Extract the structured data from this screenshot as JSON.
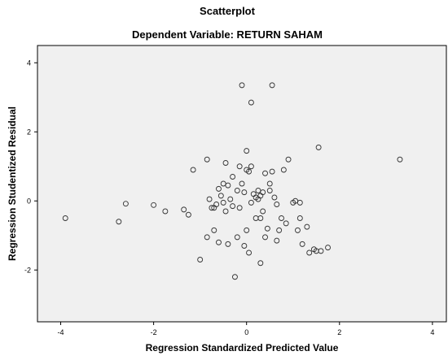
{
  "chart_data": {
    "type": "scatter",
    "title": "Scatterplot",
    "subtitle": "Dependent Variable: RETURN SAHAM",
    "xlabel": "Regression Standardized Predicted Value",
    "ylabel": "Regression Studentized Residual",
    "xlim": [
      -4.5,
      4.3
    ],
    "ylim": [
      -3.5,
      4.5
    ],
    "xticks": [
      -4,
      -2,
      0,
      2,
      4
    ],
    "yticks": [
      -2,
      0,
      2,
      4
    ],
    "grid": false,
    "colors": {
      "plot_bg": "#f0f0f0",
      "marker": "#333333",
      "frame": "#000000"
    },
    "points": [
      {
        "x": -3.9,
        "y": -0.5
      },
      {
        "x": -2.75,
        "y": -0.6
      },
      {
        "x": -2.6,
        "y": -0.08
      },
      {
        "x": -2.0,
        "y": -0.12
      },
      {
        "x": -1.75,
        "y": -0.3
      },
      {
        "x": -1.35,
        "y": -0.25
      },
      {
        "x": -1.25,
        "y": -0.4
      },
      {
        "x": -1.15,
        "y": 0.9
      },
      {
        "x": -1.0,
        "y": -1.7
      },
      {
        "x": -0.85,
        "y": 1.2
      },
      {
        "x": -0.85,
        "y": -1.05
      },
      {
        "x": -0.8,
        "y": 0.05
      },
      {
        "x": -0.75,
        "y": -0.2
      },
      {
        "x": -0.7,
        "y": -0.2
      },
      {
        "x": -0.7,
        "y": -0.85
      },
      {
        "x": -0.65,
        "y": -0.1
      },
      {
        "x": -0.6,
        "y": 0.35
      },
      {
        "x": -0.6,
        "y": -1.2
      },
      {
        "x": -0.55,
        "y": 0.15
      },
      {
        "x": -0.5,
        "y": 0.5
      },
      {
        "x": -0.5,
        "y": -0.05
      },
      {
        "x": -0.45,
        "y": 1.1
      },
      {
        "x": -0.45,
        "y": -0.3
      },
      {
        "x": -0.4,
        "y": 0.45
      },
      {
        "x": -0.4,
        "y": -1.25
      },
      {
        "x": -0.35,
        "y": 0.05
      },
      {
        "x": -0.3,
        "y": 0.7
      },
      {
        "x": -0.3,
        "y": -0.15
      },
      {
        "x": -0.25,
        "y": -2.2
      },
      {
        "x": -0.2,
        "y": -1.05
      },
      {
        "x": -0.2,
        "y": 0.3
      },
      {
        "x": -0.15,
        "y": -0.2
      },
      {
        "x": -0.15,
        "y": 1.0
      },
      {
        "x": -0.1,
        "y": 3.35
      },
      {
        "x": -0.1,
        "y": 0.5
      },
      {
        "x": -0.05,
        "y": -1.3
      },
      {
        "x": -0.05,
        "y": 0.25
      },
      {
        "x": 0.0,
        "y": -0.85
      },
      {
        "x": 0.0,
        "y": 0.9
      },
      {
        "x": 0.0,
        "y": 1.45
      },
      {
        "x": 0.05,
        "y": -1.5
      },
      {
        "x": 0.05,
        "y": 0.85
      },
      {
        "x": 0.1,
        "y": 2.85
      },
      {
        "x": 0.1,
        "y": 1.0
      },
      {
        "x": 0.1,
        "y": -0.05
      },
      {
        "x": 0.15,
        "y": 0.2
      },
      {
        "x": 0.2,
        "y": 0.1
      },
      {
        "x": 0.2,
        "y": -0.5
      },
      {
        "x": 0.25,
        "y": 0.3
      },
      {
        "x": 0.25,
        "y": 0.05
      },
      {
        "x": 0.3,
        "y": 0.15
      },
      {
        "x": 0.3,
        "y": -1.8
      },
      {
        "x": 0.3,
        "y": -0.5
      },
      {
        "x": 0.35,
        "y": 0.25
      },
      {
        "x": 0.35,
        "y": -0.3
      },
      {
        "x": 0.4,
        "y": -1.05
      },
      {
        "x": 0.4,
        "y": 0.8
      },
      {
        "x": 0.45,
        "y": -0.8
      },
      {
        "x": 0.5,
        "y": 0.3
      },
      {
        "x": 0.5,
        "y": 0.5
      },
      {
        "x": 0.55,
        "y": 3.35
      },
      {
        "x": 0.55,
        "y": 0.85
      },
      {
        "x": 0.6,
        "y": 0.1
      },
      {
        "x": 0.65,
        "y": -1.15
      },
      {
        "x": 0.65,
        "y": -0.1
      },
      {
        "x": 0.7,
        "y": -0.85
      },
      {
        "x": 0.75,
        "y": -0.5
      },
      {
        "x": 0.8,
        "y": 0.9
      },
      {
        "x": 0.85,
        "y": -0.65
      },
      {
        "x": 0.9,
        "y": 1.2
      },
      {
        "x": 1.0,
        "y": -0.05
      },
      {
        "x": 1.05,
        "y": 0.0
      },
      {
        "x": 1.1,
        "y": -0.85
      },
      {
        "x": 1.15,
        "y": -0.5
      },
      {
        "x": 1.15,
        "y": -0.05
      },
      {
        "x": 1.2,
        "y": -1.25
      },
      {
        "x": 1.3,
        "y": -0.75
      },
      {
        "x": 1.35,
        "y": -1.5
      },
      {
        "x": 1.45,
        "y": -1.4
      },
      {
        "x": 1.5,
        "y": -1.45
      },
      {
        "x": 1.55,
        "y": 1.55
      },
      {
        "x": 1.6,
        "y": -1.45
      },
      {
        "x": 1.75,
        "y": -1.35
      },
      {
        "x": 3.3,
        "y": 1.2
      }
    ]
  }
}
